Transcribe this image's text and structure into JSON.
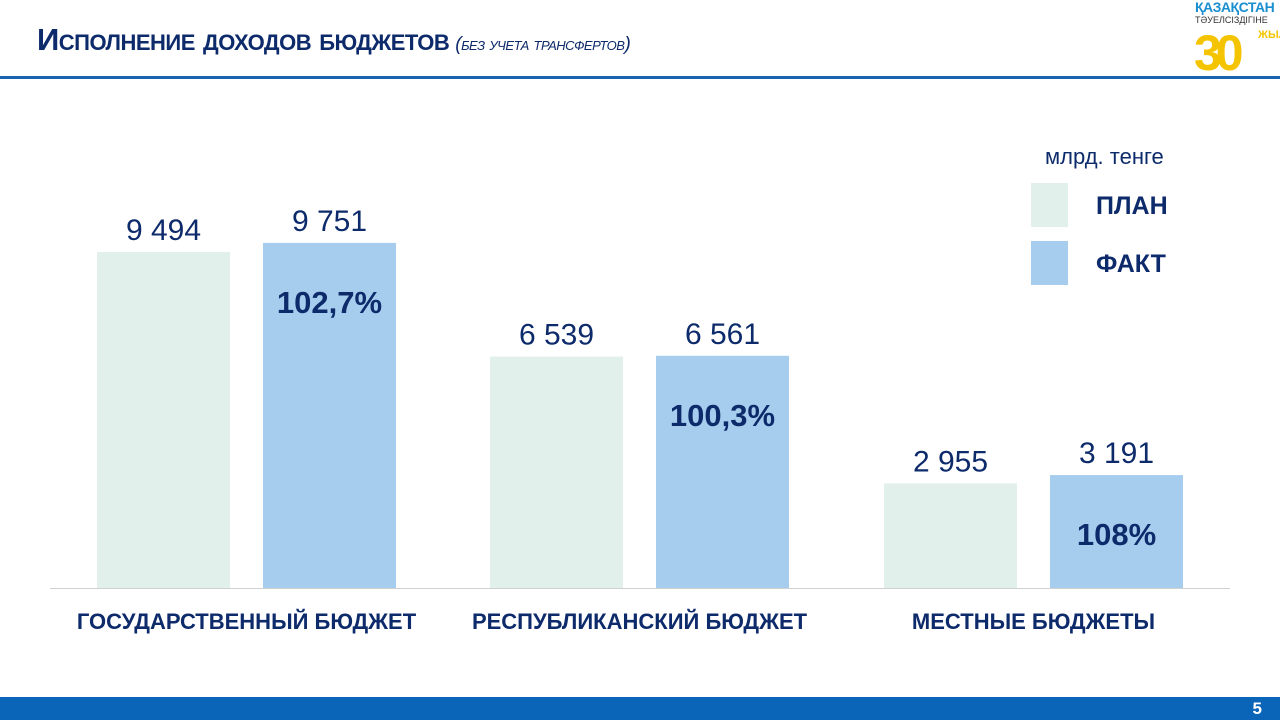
{
  "header": {
    "title": "Исполнение доходов бюджетов",
    "subtitle": "(без учета трансфертов)"
  },
  "logo": {
    "line1": "ҚАЗАҚСТАН",
    "line2": "ТӘУЕЛСІЗДІГІНЕ",
    "line3": "ЖЫЛ",
    "number": "30"
  },
  "footer": {
    "page_number": "5"
  },
  "chart_data": {
    "type": "bar",
    "unit": "млрд. тенге",
    "categories": [
      "ГОСУДАРСТВЕННЫЙ БЮДЖЕТ",
      "РЕСПУБЛИКАНСКИЙ БЮДЖЕТ",
      "МЕСТНЫЕ БЮДЖЕТЫ"
    ],
    "series": [
      {
        "name": "ПЛАН",
        "values": [
          9494,
          6539,
          2955
        ],
        "labels": [
          "9 494",
          "6 539",
          "2 955"
        ],
        "color": "#e2f0ec"
      },
      {
        "name": "ФАКТ",
        "values": [
          9751,
          6561,
          3191
        ],
        "labels": [
          "9 751",
          "6 561",
          "3 191"
        ],
        "color": "#a6cdee"
      }
    ],
    "execution_percent": [
      "102,7%",
      "100,3%",
      "108%"
    ],
    "legend": "top-right",
    "grid": false,
    "colors": {
      "text": "#0d2a6b",
      "baseline": "#d0d0d0"
    }
  }
}
